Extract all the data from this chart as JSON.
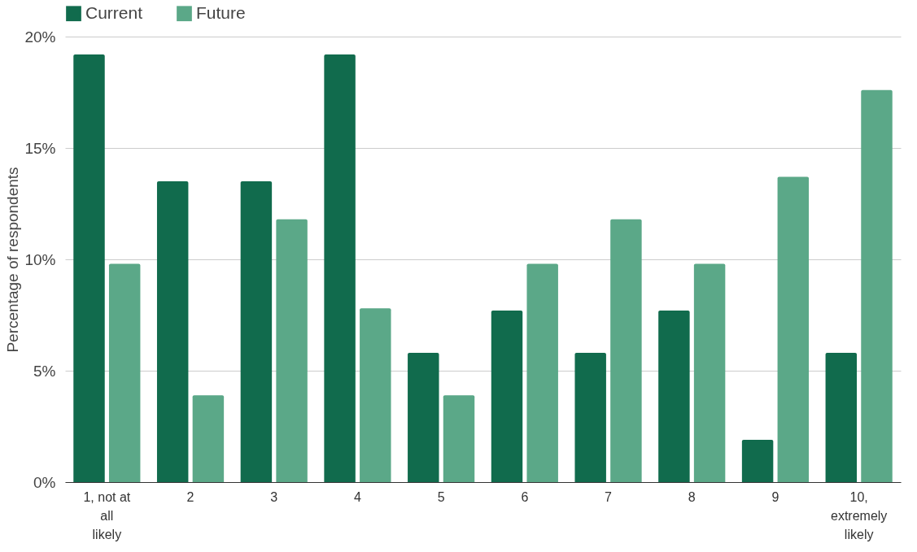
{
  "chart_data": {
    "type": "bar",
    "ylabel": "Percentage of respondents",
    "categories": [
      "1, not at all likely",
      "2",
      "3",
      "4",
      "5",
      "6",
      "7",
      "8",
      "9",
      "10, extremely likely"
    ],
    "series": [
      {
        "name": "Current",
        "color": "#116b4d",
        "values": [
          19.2,
          13.5,
          13.5,
          19.2,
          5.8,
          7.7,
          5.8,
          7.7,
          1.9,
          5.8
        ]
      },
      {
        "name": "Future",
        "color": "#5ba888",
        "values": [
          9.8,
          3.9,
          11.8,
          7.8,
          3.9,
          9.8,
          11.8,
          9.8,
          13.7,
          17.6
        ]
      }
    ],
    "ylim": [
      0,
      20
    ],
    "yticks": [
      {
        "value": 0,
        "label": "0%"
      },
      {
        "value": 5,
        "label": "5%"
      },
      {
        "value": 10,
        "label": "10%"
      },
      {
        "value": 15,
        "label": "15%"
      },
      {
        "value": 20,
        "label": "20%"
      }
    ],
    "grid": "y",
    "legend": "top"
  }
}
